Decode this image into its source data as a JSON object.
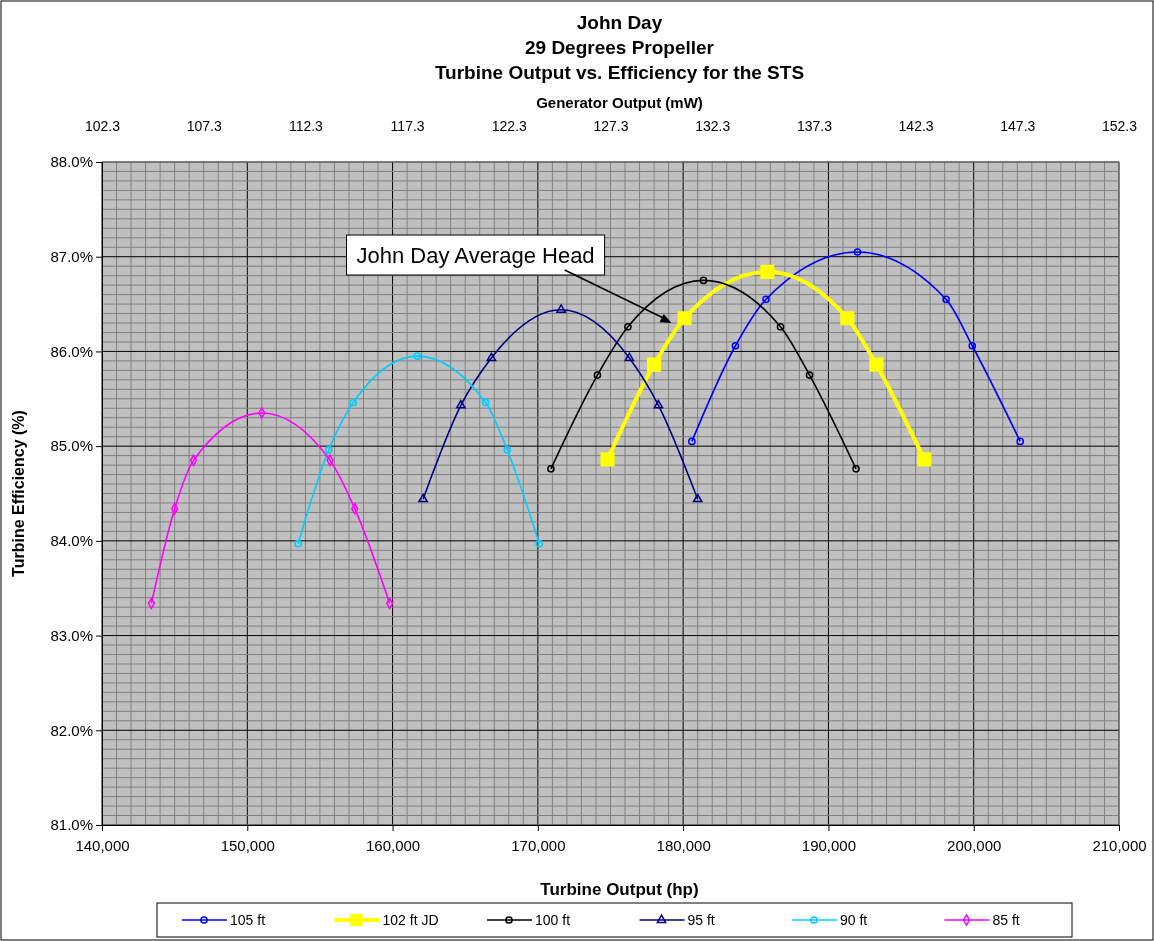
{
  "chart_data": {
    "type": "line",
    "title": "John Day\n29 Degrees Propeller\nTurbine Output vs. Efficiency for the STS",
    "xlabel": "Turbine Output (hp)",
    "ylabel": "Turbine Efficiency (%)",
    "x2label": "Generator Output (mW)",
    "xlim": [
      140000,
      210000
    ],
    "xticks": [
      {
        "value": 140000,
        "label": "140,000"
      },
      {
        "value": 150000,
        "label": "150,000"
      },
      {
        "value": 160000,
        "label": "160,000"
      },
      {
        "value": 170000,
        "label": "170,000"
      },
      {
        "value": 180000,
        "label": "180,000"
      },
      {
        "value": 190000,
        "label": "190,000"
      },
      {
        "value": 200000,
        "label": "200,000"
      },
      {
        "value": 210000,
        "label": "210,000"
      }
    ],
    "ylim": [
      81,
      88
    ],
    "yticks": [
      {
        "value": 81,
        "label": "81.0%"
      },
      {
        "value": 82,
        "label": "82.0%"
      },
      {
        "value": 83,
        "label": "83.0%"
      },
      {
        "value": 84,
        "label": "84.0%"
      },
      {
        "value": 85,
        "label": "85.0%"
      },
      {
        "value": 86,
        "label": "86.0%"
      },
      {
        "value": 87,
        "label": "87.0%"
      },
      {
        "value": 88,
        "label": "88.0%"
      }
    ],
    "x2lim": [
      102.3,
      152.3
    ],
    "x2ticks": [
      102.3,
      107.3,
      112.3,
      117.3,
      122.3,
      127.3,
      132.3,
      137.3,
      142.3,
      147.3,
      152.3
    ],
    "grid": true,
    "legend": "bottom",
    "annotations": [
      {
        "text": "John Day Average Head",
        "x": 179200,
        "y": 86.3
      }
    ],
    "series": [
      {
        "name": "105 ft",
        "color": "#0000ff",
        "marker": "circle",
        "x": [
          180600,
          183600,
          185700,
          192000,
          198100,
          199900,
          203200
        ],
        "values": [
          85.05,
          86.06,
          86.55,
          87.05,
          86.55,
          86.06,
          85.05
        ]
      },
      {
        "name": "102 ft JD",
        "color": "#ffff00",
        "marker": "square",
        "x": [
          174800,
          178000,
          180100,
          185800,
          191300,
          193300,
          196600
        ],
        "values": [
          84.86,
          85.86,
          86.35,
          86.84,
          86.35,
          85.86,
          84.86
        ]
      },
      {
        "name": "100 ft",
        "color": "#000000",
        "marker": "circle",
        "x": [
          170900,
          174100,
          176200,
          181400,
          186700,
          188700,
          191900
        ],
        "values": [
          84.76,
          85.75,
          86.26,
          86.75,
          86.26,
          85.75,
          84.76
        ]
      },
      {
        "name": "95 ft",
        "color": "#000080",
        "marker": "triangle",
        "x": [
          162100,
          164700,
          166800,
          171600,
          176300,
          178300,
          181000
        ],
        "values": [
          84.44,
          85.43,
          85.93,
          86.44,
          85.93,
          85.43,
          84.44
        ]
      },
      {
        "name": "90 ft",
        "color": "#00ccff",
        "marker": "circle",
        "x": [
          153500,
          155600,
          157300,
          161700,
          166400,
          167900,
          170100
        ],
        "values": [
          83.97,
          84.96,
          85.46,
          85.95,
          85.46,
          84.96,
          83.97
        ]
      },
      {
        "name": "85 ft",
        "color": "#ff00ff",
        "marker": "diamond",
        "x": [
          143400,
          145000,
          146300,
          151000,
          155700,
          157400,
          159800
        ],
        "values": [
          83.34,
          84.34,
          84.85,
          85.35,
          84.85,
          84.34,
          83.34
        ]
      }
    ]
  }
}
